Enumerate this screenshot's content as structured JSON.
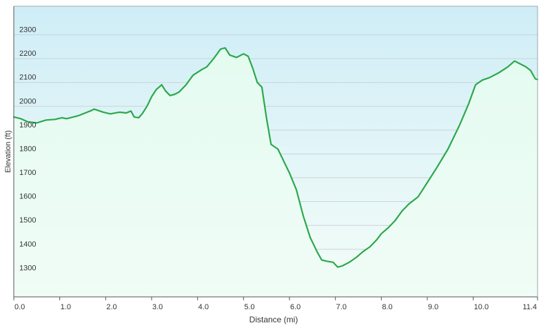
{
  "chart_data": {
    "type": "area",
    "xlabel": "Distance  (mi)",
    "ylabel": "Elevation (ft)",
    "xlim": [
      0,
      11.4
    ],
    "ylim": [
      1200,
      2420
    ],
    "grid": true,
    "x_ticks": [
      {
        "value": 0.0,
        "label": "0.0"
      },
      {
        "value": 1.0,
        "label": "1.0"
      },
      {
        "value": 2.0,
        "label": "2.0"
      },
      {
        "value": 3.0,
        "label": "3.0"
      },
      {
        "value": 4.0,
        "label": "4.0"
      },
      {
        "value": 5.0,
        "label": "5.0"
      },
      {
        "value": 6.0,
        "label": "6.0"
      },
      {
        "value": 7.0,
        "label": "7.0"
      },
      {
        "value": 8.0,
        "label": "8.0"
      },
      {
        "value": 9.0,
        "label": "9.0"
      },
      {
        "value": 10.0,
        "label": "10.0"
      },
      {
        "value": 11.4,
        "label": "11.4"
      }
    ],
    "y_ticks": [
      {
        "value": 1300,
        "label": "1300"
      },
      {
        "value": 1400,
        "label": "1400"
      },
      {
        "value": 1500,
        "label": "1500"
      },
      {
        "value": 1600,
        "label": "1600"
      },
      {
        "value": 1700,
        "label": "1700"
      },
      {
        "value": 1800,
        "label": "1800"
      },
      {
        "value": 1900,
        "label": "1900"
      },
      {
        "value": 2000,
        "label": "2000"
      },
      {
        "value": 2100,
        "label": "2100"
      },
      {
        "value": 2200,
        "label": "2200"
      },
      {
        "value": 2300,
        "label": "2300"
      }
    ],
    "series": [
      {
        "x": [
          0.0,
          0.15,
          0.3,
          0.5,
          0.7,
          0.9,
          1.05,
          1.15,
          1.4,
          1.7,
          1.75,
          1.95,
          2.1,
          2.3,
          2.45,
          2.55,
          2.62,
          2.72,
          2.8,
          2.9,
          3.0,
          3.1,
          3.22,
          3.3,
          3.4,
          3.5,
          3.6,
          3.75,
          3.9,
          4.1,
          4.2,
          4.35,
          4.5,
          4.6,
          4.7,
          4.85,
          5.0,
          5.1,
          5.2,
          5.3,
          5.4,
          5.5,
          5.6,
          5.75,
          5.9,
          6.0,
          6.15,
          6.3,
          6.45,
          6.6,
          6.7,
          6.8,
          6.95,
          7.05,
          7.15,
          7.3,
          7.45,
          7.6,
          7.75,
          7.9,
          8.0,
          8.15,
          8.3,
          8.45,
          8.6,
          8.8,
          9.0,
          9.2,
          9.45,
          9.7,
          9.9,
          10.05,
          10.2,
          10.35,
          10.55,
          10.75,
          10.9,
          11.0,
          11.15,
          11.25,
          11.35,
          11.4
        ],
        "values": [
          1955,
          1948,
          1935,
          1930,
          1942,
          1945,
          1952,
          1948,
          1960,
          1983,
          1988,
          1975,
          1968,
          1975,
          1972,
          1980,
          1955,
          1952,
          1970,
          2000,
          2040,
          2070,
          2090,
          2065,
          2045,
          2050,
          2060,
          2090,
          2130,
          2155,
          2165,
          2200,
          2240,
          2245,
          2215,
          2205,
          2220,
          2210,
          2160,
          2100,
          2080,
          1950,
          1840,
          1820,
          1760,
          1720,
          1650,
          1540,
          1450,
          1390,
          1355,
          1350,
          1345,
          1325,
          1330,
          1345,
          1365,
          1390,
          1410,
          1440,
          1465,
          1490,
          1520,
          1560,
          1590,
          1620,
          1680,
          1740,
          1820,
          1920,
          2010,
          2090,
          2110,
          2120,
          2140,
          2165,
          2190,
          2180,
          2165,
          2150,
          2115,
          2112
        ]
      }
    ],
    "colors": {
      "line": "#2aa84a",
      "fill_top": "#e4fbf0",
      "fill_bottom": "#f0fcf6",
      "bg_top": "#cfedf7",
      "bg_bottom": "#f5fdf8",
      "grid": "#c9d3d6",
      "axis": "#555555"
    }
  }
}
